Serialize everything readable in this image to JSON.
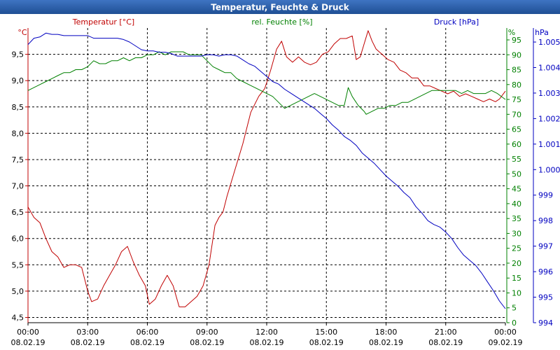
{
  "chart_data": {
    "type": "line",
    "title": "Temperatur, Feuchte & Druck",
    "colors": {
      "title_bar": "#2a5aa3",
      "title_text": "#ffffff",
      "temperature": "#c00000",
      "humidity": "#008000",
      "pressure": "#0000c0",
      "grid": "#000000",
      "axis_text": "#000000"
    },
    "x": {
      "tick_times": [
        "00:00",
        "03:00",
        "06:00",
        "09:00",
        "12:00",
        "15:00",
        "18:00",
        "21:00",
        "00:00"
      ],
      "tick_dates": [
        "08.02.19",
        "08.02.19",
        "08.02.19",
        "08.02.19",
        "08.02.19",
        "08.02.19",
        "08.02.19",
        "08.02.19",
        "09.02.19"
      ],
      "range_hours": [
        0,
        24
      ]
    },
    "axes": {
      "temperature": {
        "label": "Temperatur [°C]",
        "unit": "°C",
        "range": [
          4.4,
          10.0
        ],
        "ticks": [
          4.5,
          5.0,
          5.5,
          6.0,
          6.5,
          7.0,
          7.5,
          8.0,
          8.5,
          9.0,
          9.5
        ],
        "tick_labels": [
          "4,5",
          "5,0",
          "5,5",
          "6,0",
          "6,5",
          "7,0",
          "7,5",
          "8,0",
          "8,5",
          "9,0",
          "9,5"
        ]
      },
      "humidity": {
        "label": "rel. Feuchte [%]",
        "unit": "%",
        "range": [
          0,
          99
        ],
        "ticks": [
          0,
          5,
          10,
          15,
          20,
          25,
          30,
          35,
          40,
          45,
          50,
          55,
          60,
          65,
          70,
          75,
          80,
          85,
          90,
          95
        ],
        "tick_labels": [
          "0",
          "5",
          "10",
          "15",
          "20",
          "25",
          "30",
          "35",
          "40",
          "45",
          "50",
          "55",
          "60",
          "65",
          "70",
          "75",
          "80",
          "85",
          "90",
          "95"
        ]
      },
      "pressure": {
        "label": "Druck [hPa]",
        "unit": "hPa",
        "range": [
          994.0,
          1005.55
        ],
        "ticks": [
          994,
          995,
          996,
          997,
          998,
          999,
          1000,
          1001,
          1002,
          1003,
          1004,
          1005
        ],
        "tick_labels": [
          "994",
          "995",
          "996",
          "997",
          "998",
          "999",
          "1.000",
          "1.001",
          "1.002",
          "1.003",
          "1.004",
          "1.005"
        ]
      }
    },
    "series": [
      {
        "name": "Temperatur",
        "axis": "temperature",
        "color_key": "temperature",
        "points": [
          [
            0.0,
            6.6
          ],
          [
            0.3,
            6.4
          ],
          [
            0.6,
            6.3
          ],
          [
            0.9,
            6.0
          ],
          [
            1.2,
            5.75
          ],
          [
            1.5,
            5.65
          ],
          [
            1.8,
            5.45
          ],
          [
            2.1,
            5.5
          ],
          [
            2.4,
            5.5
          ],
          [
            2.7,
            5.45
          ],
          [
            3.0,
            5.0
          ],
          [
            3.2,
            4.8
          ],
          [
            3.5,
            4.85
          ],
          [
            3.8,
            5.1
          ],
          [
            4.1,
            5.3
          ],
          [
            4.4,
            5.5
          ],
          [
            4.7,
            5.75
          ],
          [
            5.0,
            5.85
          ],
          [
            5.3,
            5.55
          ],
          [
            5.6,
            5.3
          ],
          [
            5.9,
            5.1
          ],
          [
            6.1,
            4.75
          ],
          [
            6.4,
            4.85
          ],
          [
            6.7,
            5.1
          ],
          [
            7.0,
            5.3
          ],
          [
            7.3,
            5.1
          ],
          [
            7.6,
            4.7
          ],
          [
            7.9,
            4.7
          ],
          [
            8.2,
            4.8
          ],
          [
            8.5,
            4.9
          ],
          [
            8.8,
            5.1
          ],
          [
            9.1,
            5.5
          ],
          [
            9.4,
            6.25
          ],
          [
            9.6,
            6.4
          ],
          [
            9.8,
            6.5
          ],
          [
            10.0,
            6.8
          ],
          [
            10.4,
            7.3
          ],
          [
            10.8,
            7.8
          ],
          [
            11.2,
            8.4
          ],
          [
            11.6,
            8.7
          ],
          [
            11.9,
            8.85
          ],
          [
            12.2,
            9.2
          ],
          [
            12.5,
            9.6
          ],
          [
            12.75,
            9.75
          ],
          [
            13.0,
            9.45
          ],
          [
            13.3,
            9.35
          ],
          [
            13.6,
            9.45
          ],
          [
            13.9,
            9.35
          ],
          [
            14.2,
            9.3
          ],
          [
            14.5,
            9.35
          ],
          [
            14.8,
            9.5
          ],
          [
            15.1,
            9.55
          ],
          [
            15.4,
            9.7
          ],
          [
            15.7,
            9.8
          ],
          [
            16.0,
            9.8
          ],
          [
            16.3,
            9.85
          ],
          [
            16.5,
            9.4
          ],
          [
            16.7,
            9.45
          ],
          [
            16.9,
            9.7
          ],
          [
            17.1,
            9.95
          ],
          [
            17.3,
            9.75
          ],
          [
            17.5,
            9.6
          ],
          [
            17.8,
            9.5
          ],
          [
            18.1,
            9.4
          ],
          [
            18.4,
            9.35
          ],
          [
            18.7,
            9.2
          ],
          [
            19.0,
            9.15
          ],
          [
            19.3,
            9.05
          ],
          [
            19.6,
            9.05
          ],
          [
            19.9,
            8.9
          ],
          [
            20.2,
            8.9
          ],
          [
            20.5,
            8.85
          ],
          [
            20.8,
            8.8
          ],
          [
            21.1,
            8.75
          ],
          [
            21.4,
            8.8
          ],
          [
            21.7,
            8.7
          ],
          [
            22.0,
            8.75
          ],
          [
            22.3,
            8.7
          ],
          [
            22.6,
            8.65
          ],
          [
            22.9,
            8.6
          ],
          [
            23.2,
            8.65
          ],
          [
            23.5,
            8.6
          ],
          [
            23.7,
            8.65
          ],
          [
            24.0,
            8.8
          ]
        ]
      },
      {
        "name": "rel. Feuchte",
        "axis": "humidity",
        "color_key": "humidity",
        "points": [
          [
            0.0,
            78
          ],
          [
            0.3,
            79
          ],
          [
            0.6,
            80
          ],
          [
            0.9,
            81
          ],
          [
            1.2,
            82
          ],
          [
            1.5,
            83
          ],
          [
            1.8,
            84
          ],
          [
            2.1,
            84
          ],
          [
            2.4,
            85
          ],
          [
            2.7,
            85
          ],
          [
            3.0,
            86
          ],
          [
            3.3,
            88
          ],
          [
            3.6,
            87
          ],
          [
            3.9,
            87
          ],
          [
            4.2,
            88
          ],
          [
            4.5,
            88
          ],
          [
            4.8,
            89
          ],
          [
            5.1,
            88
          ],
          [
            5.4,
            89
          ],
          [
            5.7,
            89
          ],
          [
            6.0,
            90
          ],
          [
            6.3,
            90
          ],
          [
            6.6,
            91
          ],
          [
            6.9,
            90
          ],
          [
            7.2,
            91
          ],
          [
            7.5,
            91
          ],
          [
            7.8,
            91
          ],
          [
            8.1,
            90
          ],
          [
            8.4,
            90
          ],
          [
            8.7,
            90
          ],
          [
            9.0,
            88
          ],
          [
            9.3,
            86
          ],
          [
            9.6,
            85
          ],
          [
            9.9,
            84
          ],
          [
            10.2,
            84
          ],
          [
            10.5,
            82
          ],
          [
            10.8,
            81
          ],
          [
            11.1,
            80
          ],
          [
            11.4,
            79
          ],
          [
            11.7,
            78
          ],
          [
            12.0,
            77
          ],
          [
            12.3,
            76
          ],
          [
            12.6,
            74
          ],
          [
            12.9,
            72
          ],
          [
            13.2,
            73
          ],
          [
            13.5,
            74
          ],
          [
            13.8,
            75
          ],
          [
            14.1,
            76
          ],
          [
            14.4,
            77
          ],
          [
            14.7,
            76
          ],
          [
            15.0,
            75
          ],
          [
            15.3,
            74
          ],
          [
            15.6,
            73
          ],
          [
            15.9,
            73
          ],
          [
            16.1,
            79
          ],
          [
            16.3,
            76
          ],
          [
            16.6,
            73
          ],
          [
            16.9,
            71
          ],
          [
            17.0,
            70
          ],
          [
            17.3,
            71
          ],
          [
            17.6,
            72
          ],
          [
            17.9,
            72
          ],
          [
            18.2,
            73
          ],
          [
            18.5,
            73
          ],
          [
            18.8,
            74
          ],
          [
            19.1,
            74
          ],
          [
            19.4,
            75
          ],
          [
            19.7,
            76
          ],
          [
            20.0,
            77
          ],
          [
            20.3,
            78
          ],
          [
            20.6,
            78
          ],
          [
            20.9,
            78
          ],
          [
            21.2,
            78
          ],
          [
            21.5,
            78
          ],
          [
            21.8,
            77
          ],
          [
            22.1,
            78
          ],
          [
            22.4,
            77
          ],
          [
            22.7,
            77
          ],
          [
            23.0,
            77
          ],
          [
            23.3,
            78
          ],
          [
            23.6,
            77
          ],
          [
            24.0,
            75
          ]
        ]
      },
      {
        "name": "Druck",
        "axis": "pressure",
        "color_key": "pressure",
        "points": [
          [
            0.0,
            1004.9
          ],
          [
            0.3,
            1005.15
          ],
          [
            0.6,
            1005.2
          ],
          [
            0.9,
            1005.35
          ],
          [
            1.2,
            1005.3
          ],
          [
            1.5,
            1005.3
          ],
          [
            1.8,
            1005.25
          ],
          [
            2.1,
            1005.25
          ],
          [
            2.4,
            1005.25
          ],
          [
            2.7,
            1005.25
          ],
          [
            3.0,
            1005.25
          ],
          [
            3.3,
            1005.15
          ],
          [
            3.6,
            1005.15
          ],
          [
            3.9,
            1005.15
          ],
          [
            4.2,
            1005.15
          ],
          [
            4.5,
            1005.15
          ],
          [
            4.8,
            1005.1
          ],
          [
            5.1,
            1005.0
          ],
          [
            5.4,
            1004.85
          ],
          [
            5.7,
            1004.7
          ],
          [
            6.0,
            1004.65
          ],
          [
            6.3,
            1004.65
          ],
          [
            6.6,
            1004.6
          ],
          [
            6.9,
            1004.6
          ],
          [
            7.2,
            1004.55
          ],
          [
            7.5,
            1004.45
          ],
          [
            7.8,
            1004.45
          ],
          [
            8.1,
            1004.45
          ],
          [
            8.4,
            1004.45
          ],
          [
            8.7,
            1004.45
          ],
          [
            9.0,
            1004.5
          ],
          [
            9.3,
            1004.5
          ],
          [
            9.6,
            1004.45
          ],
          [
            9.9,
            1004.5
          ],
          [
            10.2,
            1004.5
          ],
          [
            10.5,
            1004.45
          ],
          [
            10.8,
            1004.3
          ],
          [
            11.1,
            1004.15
          ],
          [
            11.4,
            1004.05
          ],
          [
            11.7,
            1003.85
          ],
          [
            12.0,
            1003.65
          ],
          [
            12.3,
            1003.45
          ],
          [
            12.6,
            1003.35
          ],
          [
            12.9,
            1003.15
          ],
          [
            13.2,
            1003.0
          ],
          [
            13.5,
            1002.85
          ],
          [
            13.8,
            1002.7
          ],
          [
            14.1,
            1002.55
          ],
          [
            14.4,
            1002.4
          ],
          [
            14.7,
            1002.2
          ],
          [
            15.0,
            1002.0
          ],
          [
            15.3,
            1001.75
          ],
          [
            15.6,
            1001.55
          ],
          [
            15.9,
            1001.3
          ],
          [
            16.2,
            1001.15
          ],
          [
            16.5,
            1000.95
          ],
          [
            16.8,
            1000.65
          ],
          [
            17.1,
            1000.45
          ],
          [
            17.4,
            1000.25
          ],
          [
            17.7,
            1000.0
          ],
          [
            18.0,
            999.75
          ],
          [
            18.3,
            999.55
          ],
          [
            18.6,
            999.35
          ],
          [
            18.9,
            999.1
          ],
          [
            19.2,
            998.9
          ],
          [
            19.5,
            998.55
          ],
          [
            19.8,
            998.3
          ],
          [
            20.1,
            998.0
          ],
          [
            20.4,
            997.85
          ],
          [
            20.7,
            997.75
          ],
          [
            21.0,
            997.55
          ],
          [
            21.3,
            997.3
          ],
          [
            21.6,
            996.95
          ],
          [
            21.9,
            996.65
          ],
          [
            22.2,
            996.45
          ],
          [
            22.5,
            996.25
          ],
          [
            22.8,
            995.95
          ],
          [
            23.1,
            995.6
          ],
          [
            23.4,
            995.25
          ],
          [
            23.7,
            994.85
          ],
          [
            24.0,
            994.55
          ]
        ]
      }
    ]
  }
}
